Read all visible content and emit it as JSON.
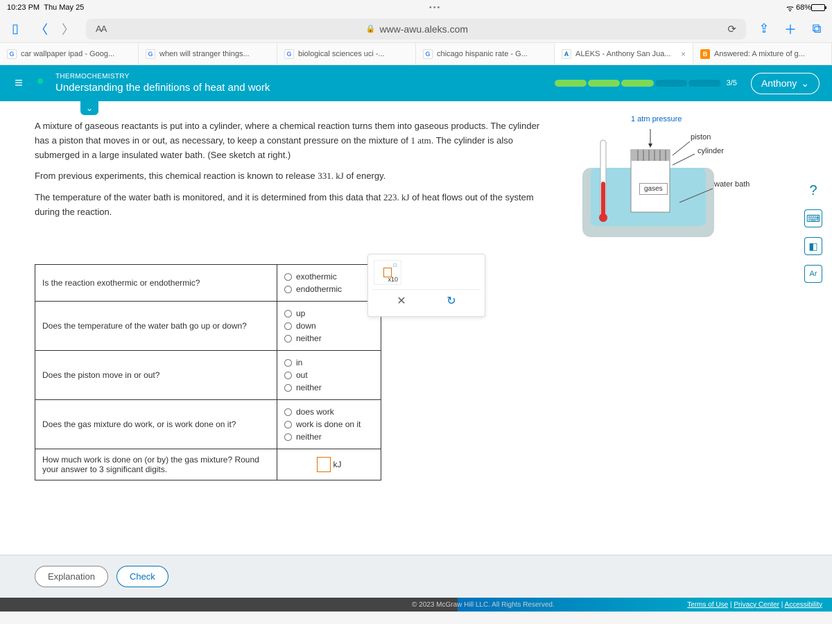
{
  "status_bar": {
    "time": "10:23 PM",
    "day": "Thu May 25",
    "battery_pct": "68%",
    "battery_fill_pct": 68
  },
  "browser": {
    "aa": "AA",
    "url": "www-awu.aleks.com",
    "tabs": [
      {
        "label": "car wallpaper ipad - Goog...",
        "fav": "g"
      },
      {
        "label": "when will stranger things...",
        "fav": "g"
      },
      {
        "label": "biological sciences uci -...",
        "fav": "g"
      },
      {
        "label": "chicago hispanic rate - G...",
        "fav": "g"
      },
      {
        "label": "ALEKS - Anthony San Jua...",
        "fav": "a",
        "active": true,
        "closeable": true
      },
      {
        "label": "Answered: A mixture of g...",
        "fav": "b"
      }
    ]
  },
  "header": {
    "topic": "THERMOCHEMISTRY",
    "title": "Understanding the definitions of heat and work",
    "progress_filled": 3,
    "progress_total": 5,
    "progress_text": "3/5",
    "user": "Anthony"
  },
  "problem": {
    "p1a": "A mixture of gaseous reactants is put into a cylinder, where a chemical reaction turns them into gaseous products. The cylinder has a piston that moves in or out, as necessary, to keep a constant pressure on the mixture of ",
    "p1_num1": "1 atm",
    "p1b": ". The cylinder is also submerged in a large insulated water bath. (See sketch at right.)",
    "p2a": "From previous experiments, this chemical reaction is known to release ",
    "p2_num": "331. kJ",
    "p2b": " of energy.",
    "p3a": "The temperature of the water bath is monitored, and it is determined from this data that ",
    "p3_num": "223. kJ",
    "p3b": " of heat flows out of the system during the reaction."
  },
  "diagram": {
    "pressure": "1 atm pressure",
    "piston": "piston",
    "cylinder": "cylinder",
    "water_bath": "water bath",
    "gases": "gases",
    "colors": {
      "water": "#9fd9e6",
      "container": "#c5d4d4",
      "piston": "#b8b8b8",
      "gases_box": "#ffffff"
    }
  },
  "questions": [
    {
      "q": "Is the reaction exothermic or endothermic?",
      "opts": [
        "exothermic",
        "endothermic"
      ]
    },
    {
      "q": "Does the temperature of the water bath go up or down?",
      "opts": [
        "up",
        "down",
        "neither"
      ]
    },
    {
      "q": "Does the piston move in or out?",
      "opts": [
        "in",
        "out",
        "neither"
      ]
    },
    {
      "q": "Does the gas mixture do work, or is work done on it?",
      "opts": [
        "does work",
        "work is done on it",
        "neither"
      ]
    },
    {
      "q": "How much work is done on (or by) the gas mixture? Round your answer to 3 significant digits.",
      "input": true,
      "unit": "kJ"
    }
  ],
  "palette": {
    "x10": "x10",
    "close": "✕",
    "undo": "↻"
  },
  "side_buttons": [
    "?",
    "⌨",
    "◧",
    "Ar"
  ],
  "bottom": {
    "explanation": "Explanation",
    "check": "Check"
  },
  "footer": {
    "copyright": "© 2023 McGraw Hill LLC. All Rights Reserved.",
    "links": [
      "Terms of Use",
      "Privacy Center",
      "Accessibility"
    ]
  }
}
